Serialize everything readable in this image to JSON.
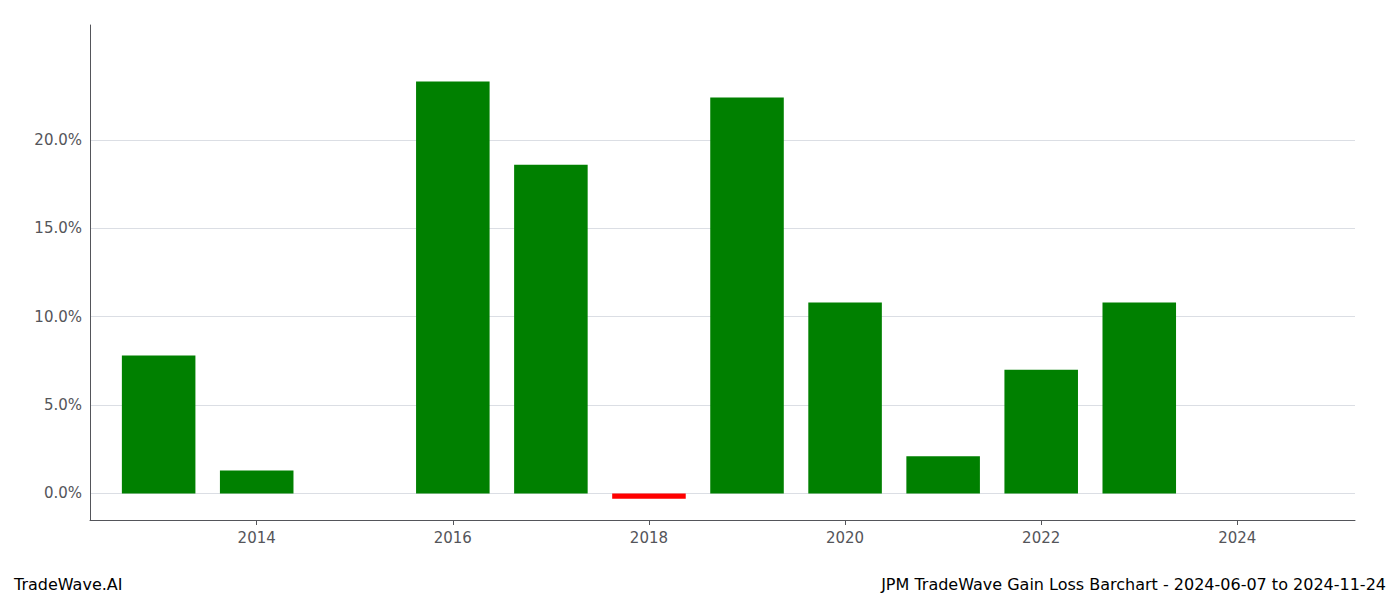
{
  "chart_data": {
    "type": "bar",
    "x": [
      2013,
      2014,
      2016,
      2017,
      2018,
      2019,
      2020,
      2021,
      2022,
      2023
    ],
    "values": [
      0.078,
      0.013,
      0.233,
      0.186,
      -0.003,
      0.224,
      0.108,
      0.021,
      0.07,
      0.108
    ],
    "colors": [
      "#008000",
      "#008000",
      "#008000",
      "#008000",
      "#ff0000",
      "#008000",
      "#008000",
      "#008000",
      "#008000",
      "#008000"
    ],
    "xlim": [
      2012.3,
      2025.2
    ],
    "xticks": [
      2014,
      2016,
      2018,
      2020,
      2022,
      2024
    ],
    "ylim": [
      -0.015,
      0.265
    ],
    "yticks": [
      {
        "value": 0.0,
        "label": "0.0%"
      },
      {
        "value": 0.05,
        "label": "5.0%"
      },
      {
        "value": 0.1,
        "label": "10.0%"
      },
      {
        "value": 0.15,
        "label": "15.0%"
      },
      {
        "value": 0.2,
        "label": "20.0%"
      }
    ],
    "grid": true,
    "annotations": [
      "TradeWave.AI",
      "JPM TradeWave Gain Loss Barchart - 2024-06-07 to 2024-11-24"
    ]
  }
}
